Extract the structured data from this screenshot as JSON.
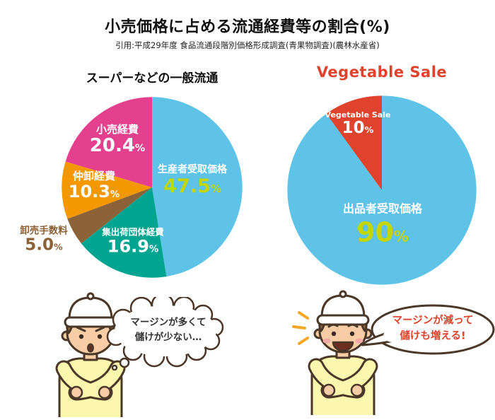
{
  "header": {
    "title": "小売価格に占める流通経費等の割合(%)",
    "source": "引用:平成29年度 食品流通段階別価格形成調査(青果物調査)(農林水産省)"
  },
  "percent_sign": "%",
  "chart_data": [
    {
      "type": "pie",
      "title": "スーパーなどの一般流通",
      "title_color": "#111111",
      "start_angle": 0,
      "legend": false,
      "slices": [
        {
          "label": "生産者受取価格",
          "value": 47.5,
          "value_text": "47.5",
          "color": "#5fc2e7",
          "label_color": "#ffffff",
          "value_color": "#c3d600"
        },
        {
          "label": "集出荷団体経費",
          "value": 16.9,
          "value_text": "16.9",
          "color": "#00a591",
          "label_color": "#ffffff",
          "value_color": "#ffffff"
        },
        {
          "label": "卸売手数料",
          "value": 5.0,
          "value_text": "5.0",
          "color": "#8c6239",
          "label_color": "#8a6134",
          "value_color": "#8a6134"
        },
        {
          "label": "仲卸経費",
          "value": 10.3,
          "value_text": "10.3",
          "color": "#f39800",
          "label_color": "#ffffff",
          "value_color": "#ffffff"
        },
        {
          "label": "小売経費",
          "value": 20.4,
          "value_text": "20.4",
          "color": "#e5408e",
          "label_color": "#ffffff",
          "value_color": "#ffffff"
        }
      ]
    },
    {
      "type": "pie",
      "title": "Vegetable Sale",
      "title_color": "#e0432d",
      "start_angle": -36,
      "legend": false,
      "slices": [
        {
          "label": "Vegetable Sale",
          "value": 10,
          "value_text": "10",
          "color": "#e0432d",
          "label_color": "#ffffff",
          "value_color": "#ffffff"
        },
        {
          "label": "出品者受取価格",
          "value": 90,
          "value_text": "90",
          "color": "#5fc2e7",
          "label_color": "#ffffff",
          "value_color": "#c3d600"
        }
      ]
    }
  ],
  "bubbles": {
    "left": {
      "lines": [
        "マージンが多くて",
        "儲けが少ない…"
      ]
    },
    "right": {
      "lines": [
        "マージンが減って",
        "儲けも増える!"
      ]
    }
  }
}
